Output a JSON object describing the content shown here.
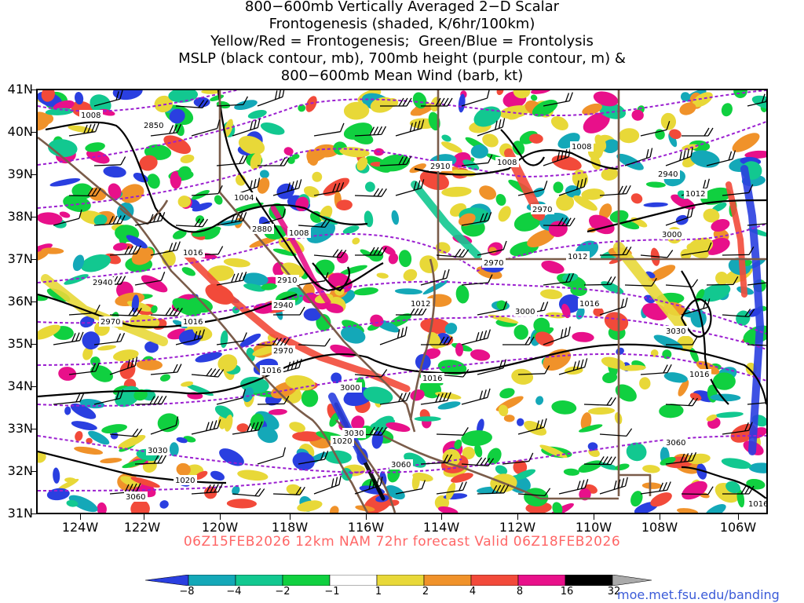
{
  "title": {
    "line1": "800−600mb Vertically Averaged 2−D Scalar",
    "line2": "Frontogenesis (shaded, K/6hr/100km)",
    "line3": "Yellow/Red = Frontogenesis;  Green/Blue = Frontolysis",
    "line4": "MSLP (black contour, mb), 700mb height (purple contour, m) &",
    "line5": "800−600mb Mean Wind (barb, kt)"
  },
  "latitudes": [
    "41N",
    "40N",
    "39N",
    "38N",
    "37N",
    "36N",
    "35N",
    "34N",
    "33N",
    "32N",
    "31N"
  ],
  "longitudes": [
    "124W",
    "122W",
    "120W",
    "118W",
    "116W",
    "114W",
    "112W",
    "110W",
    "108W",
    "106W"
  ],
  "valid_line": "06Z15FEB2026 12km NAM 72hr forecast Valid 06Z18FEB2026",
  "colorbar": {
    "labels": [
      "−8",
      "−4",
      "−2",
      "−1",
      "1",
      "2",
      "4",
      "8",
      "16",
      "32"
    ],
    "colors": [
      "#2a3fe0",
      "#14a8b8",
      "#12c890",
      "#10d040",
      "#ffffff",
      "#e8d838",
      "#f0922a",
      "#f24a3a",
      "#e8108a",
      "#000000",
      "#aaaaaa"
    ]
  },
  "credit": "moe.met.fsu.edu/banding",
  "mslp_labels": [
    "1008",
    "1004",
    "1008",
    "1008",
    "1008",
    "1012",
    "1012",
    "1012",
    "1016",
    "1016",
    "1016",
    "1016",
    "1016",
    "1016",
    "1020",
    "1020",
    "1016"
  ],
  "height_labels": [
    "2850",
    "2880",
    "2910",
    "2910",
    "2940",
    "2940",
    "2940",
    "2970",
    "2970",
    "2970",
    "2970",
    "3000",
    "3000",
    "3000",
    "3030",
    "3030",
    "3030",
    "3060",
    "3060",
    "3060"
  ],
  "colors": {
    "mslp": "#000000",
    "height": "#9b1fd0",
    "borders": "#7a5c4a",
    "valid": "#ff6666",
    "credit": "#3b5bd8"
  }
}
